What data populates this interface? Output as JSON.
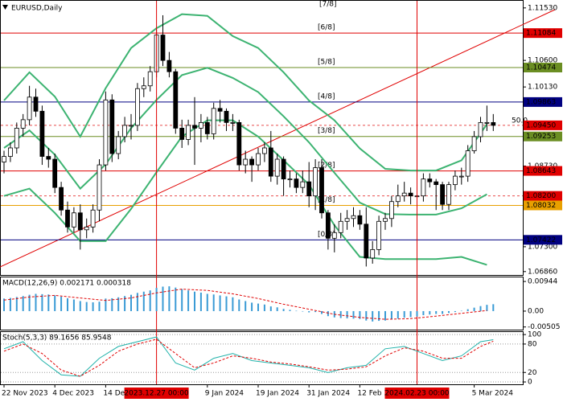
{
  "chart_data": [
    {
      "type": "candlestick",
      "title": "EURUSD,Daily",
      "categories": [
        "22 Nov 2023",
        null,
        null,
        null,
        null,
        null,
        null,
        null,
        "4 Dec 2023",
        null,
        null,
        null,
        null,
        null,
        null,
        null,
        "14 Dec 2023",
        null,
        null,
        null,
        null,
        null,
        null,
        null,
        "2023.12.27 00:00",
        null,
        null,
        null,
        null,
        null,
        null,
        null,
        "9 Jan 2024",
        null,
        null,
        null,
        null,
        null,
        null,
        null,
        "19 Jan 2024",
        null,
        null,
        null,
        null,
        null,
        null,
        null,
        "31 Jan 2024",
        null,
        null,
        null,
        null,
        null,
        null,
        null,
        "12 Feb 2024",
        null,
        null,
        null,
        null,
        null,
        null,
        null,
        null,
        "2024.02.23 00:00",
        null,
        null,
        null,
        null,
        null,
        null,
        null,
        null,
        "5 Mar 2024",
        null,
        null,
        null
      ],
      "highlight": [
        24,
        65
      ],
      "highlight_color": "#e00000",
      "xlim": [
        -0.633,
        81.646
      ],
      "candles": [
        [
          1.088,
          1.09,
          1.086,
          1.089
        ],
        [
          1.089,
          1.0915,
          1.088,
          1.0905
        ],
        [
          1.0905,
          1.095,
          1.0895,
          1.094
        ],
        [
          1.094,
          1.0965,
          1.0925,
          1.0955
        ],
        [
          1.0955,
          1.1015,
          1.0945,
          1.0995
        ],
        [
          1.0995,
          1.101,
          1.096,
          1.097
        ],
        [
          1.097,
          1.098,
          1.0875,
          1.089
        ],
        [
          1.089,
          1.0905,
          1.087,
          1.0885
        ],
        [
          1.0885,
          1.0895,
          1.0825,
          1.0835
        ],
        [
          1.0835,
          1.0845,
          1.0785,
          1.0795
        ],
        [
          1.0795,
          1.081,
          1.0755,
          1.0765
        ],
        [
          1.0765,
          1.08,
          1.0755,
          1.079
        ],
        [
          1.079,
          1.0805,
          1.0725,
          1.076
        ],
        [
          1.076,
          1.078,
          1.0745,
          1.0765
        ],
        [
          1.0765,
          1.0805,
          1.0755,
          1.0795
        ],
        [
          1.0795,
          1.0885,
          1.0775,
          1.0875
        ],
        [
          1.0875,
          1.1005,
          1.0865,
          1.099
        ],
        [
          1.099,
          1.1,
          1.088,
          1.0895
        ],
        [
          1.0895,
          1.0935,
          1.0885,
          1.0925
        ],
        [
          1.0925,
          1.096,
          1.0915,
          1.0945
        ],
        [
          1.0945,
          1.0965,
          1.092,
          1.0945
        ],
        [
          1.0945,
          1.102,
          1.0935,
          1.101
        ],
        [
          1.101,
          1.103,
          1.0995,
          1.1015
        ],
        [
          1.1015,
          1.105,
          1.1005,
          1.104
        ],
        [
          1.104,
          1.1115,
          1.103,
          1.1105
        ],
        [
          1.1105,
          1.114,
          1.105,
          1.106
        ],
        [
          1.106,
          1.1075,
          1.103,
          1.104
        ],
        [
          1.104,
          1.1045,
          1.093,
          1.094
        ],
        [
          1.094,
          1.0955,
          1.0905,
          1.092
        ],
        [
          1.092,
          1.0955,
          1.091,
          1.0945
        ],
        [
          1.0945,
          1.0995,
          1.0875,
          1.094
        ],
        [
          1.094,
          1.0965,
          1.0915,
          1.095
        ],
        [
          1.095,
          1.096,
          1.092,
          1.093
        ],
        [
          1.093,
          1.0985,
          1.092,
          1.0975
        ],
        [
          1.0975,
          1.099,
          1.095,
          1.097
        ],
        [
          1.097,
          1.0975,
          1.0935,
          1.095
        ],
        [
          1.095,
          1.0965,
          1.0935,
          1.095
        ],
        [
          1.095,
          1.0955,
          1.0865,
          1.0875
        ],
        [
          1.0875,
          1.09,
          1.086,
          1.0885
        ],
        [
          1.0885,
          1.089,
          1.0845,
          1.0875
        ],
        [
          1.0875,
          1.0905,
          1.0865,
          1.0895
        ],
        [
          1.0895,
          1.0915,
          1.088,
          1.0905
        ],
        [
          1.0905,
          1.0935,
          1.0845,
          1.0855
        ],
        [
          1.0855,
          1.0895,
          1.084,
          1.0885
        ],
        [
          1.0885,
          1.089,
          1.082,
          1.085
        ],
        [
          1.085,
          1.0865,
          1.0835,
          1.085
        ],
        [
          1.085,
          1.086,
          1.0825,
          1.0835
        ],
        [
          1.0835,
          1.0865,
          1.0825,
          1.0845
        ],
        [
          1.0845,
          1.088,
          1.08,
          1.082
        ],
        [
          1.082,
          1.0885,
          1.0795,
          1.087
        ],
        [
          1.087,
          1.0885,
          1.078,
          1.079
        ],
        [
          1.079,
          1.0795,
          1.0725,
          1.0745
        ],
        [
          1.0745,
          1.077,
          1.072,
          1.0755
        ],
        [
          1.0755,
          1.079,
          1.0745,
          1.0775
        ],
        [
          1.0775,
          1.0795,
          1.076,
          1.078
        ],
        [
          1.078,
          1.08,
          1.0765,
          1.0785
        ],
        [
          1.0785,
          1.0795,
          1.076,
          1.077
        ],
        [
          1.077,
          1.08,
          1.0695,
          1.071
        ],
        [
          1.071,
          1.074,
          1.07,
          1.0725
        ],
        [
          1.0725,
          1.0785,
          1.0715,
          1.0775
        ],
        [
          1.0775,
          1.079,
          1.076,
          1.078
        ],
        [
          1.078,
          1.082,
          1.0765,
          1.081
        ],
        [
          1.081,
          1.084,
          1.08,
          1.082
        ],
        [
          1.082,
          1.0845,
          1.081,
          1.0825
        ],
        [
          1.0825,
          1.0835,
          1.0805,
          1.082
        ],
        [
          1.082,
          1.0835,
          1.08,
          1.082
        ],
        [
          1.082,
          1.086,
          1.081,
          1.085
        ],
        [
          1.085,
          1.086,
          1.0835,
          1.0845
        ],
        [
          1.0845,
          1.085,
          1.0795,
          1.084
        ],
        [
          1.084,
          1.0845,
          1.0795,
          1.0805
        ],
        [
          1.0805,
          1.0845,
          1.0795,
          1.084
        ],
        [
          1.084,
          1.0865,
          1.083,
          1.0855
        ],
        [
          1.0855,
          1.087,
          1.084,
          1.0855
        ],
        [
          1.0855,
          1.091,
          1.0845,
          1.09
        ],
        [
          1.09,
          1.0935,
          1.0895,
          1.0925
        ],
        [
          1.0925,
          1.096,
          1.0915,
          1.095
        ],
        [
          1.095,
          1.098,
          1.0935,
          1.095
        ],
        [
          1.095,
          1.0965,
          1.0935,
          1.0945
        ]
      ],
      "up_color": "#ffffff",
      "down_color": "#000000",
      "overlays": [
        {
          "color": "#3cb371",
          "x": [
            0,
            4,
            8,
            12,
            16,
            20,
            24,
            28,
            32,
            36,
            40,
            44,
            48,
            52,
            56,
            60,
            64,
            68,
            72,
            76
          ],
          "values": [
            1.0989,
            1.1039,
            1.0996,
            1.0925,
            1.1011,
            1.1082,
            1.1117,
            1.1142,
            1.1139,
            1.1103,
            1.1082,
            1.1039,
            1.0989,
            1.0954,
            1.0904,
            1.0868,
            1.0865,
            1.0865,
            1.0883,
            1.0947
          ]
        },
        {
          "color": "#3cb371",
          "x": [
            0,
            4,
            8,
            12,
            16,
            20,
            24,
            28,
            32,
            36,
            40,
            44,
            48,
            52,
            56,
            60,
            64,
            68,
            72,
            76
          ],
          "values": [
            1.0905,
            1.0936,
            1.0893,
            1.0833,
            1.0876,
            1.094,
            1.099,
            1.1034,
            1.1047,
            1.1029,
            1.1004,
            1.0961,
            1.0915,
            1.0861,
            1.0808,
            1.0788,
            1.0787,
            1.0787,
            1.0798,
            1.0823
          ]
        },
        {
          "color": "#3cb371",
          "x": [
            0,
            4,
            8,
            12,
            16,
            20,
            24,
            28,
            32,
            36,
            40,
            44,
            48,
            52,
            56,
            60,
            64,
            68,
            72,
            76
          ],
          "values": [
            1.082,
            1.0833,
            1.079,
            1.074,
            1.074,
            1.0797,
            1.0862,
            1.0925,
            1.0954,
            1.0954,
            1.0925,
            1.0883,
            1.084,
            1.0768,
            1.0712,
            1.0708,
            1.0708,
            1.0708,
            1.0712,
            1.0698
          ]
        }
      ],
      "levels": [
        {
          "value": 1.11084,
          "color": "#e00000",
          "murrey": "[6/8]"
        },
        {
          "value": 1.10474,
          "color": "#6b8e23",
          "murrey": "[5/8]"
        },
        {
          "value": 1.09863,
          "color": "#000080",
          "murrey": "[4/8]"
        },
        {
          "value": 1.0945,
          "label": "1.09450",
          "color": "#e00000",
          "dash": true
        },
        {
          "value": 1.09253,
          "color": "#6b8e23",
          "murrey": "[3/8]"
        },
        {
          "value": 1.08643,
          "color": "#e00000",
          "murrey": "[2/8]"
        },
        {
          "value": 1.082,
          "label": "1.08200",
          "color": "#e00000",
          "dash": true
        },
        {
          "value": 1.08032,
          "color": "#e8a000",
          "murrey": "[1/8]"
        },
        {
          "value": 1.07422,
          "color": "#000080",
          "murrey": "[0/8]"
        }
      ],
      "top_murrey": "[7/8]",
      "fib_label": "50.0",
      "ylim": [
        1.068,
        1.1167
      ],
      "yticks": [
        {
          "value": 1.1153,
          "label": "1.11530"
        },
        {
          "value": 1.106,
          "label": "1.10600"
        },
        {
          "value": 1.1013,
          "label": "1.10130"
        },
        {
          "value": 1.0873,
          "label": "1.08730"
        },
        {
          "value": 1.073,
          "label": "1.07300"
        },
        {
          "value": 1.0686,
          "label": "1.06860"
        }
      ]
    },
    {
      "type": "macd",
      "title": "MACD(12,26,9) 0.002171 0.000318",
      "series": [
        {
          "type": "bar",
          "color": "#3a9bd5",
          "values": [
            0.004,
            0.0042,
            0.0045,
            0.0048,
            0.0052,
            0.0055,
            0.0054,
            0.0053,
            0.005,
            0.0046,
            0.0041,
            0.0037,
            0.0032,
            0.0029,
            0.0028,
            0.003,
            0.004,
            0.0041,
            0.0044,
            0.0048,
            0.0052,
            0.0058,
            0.0062,
            0.0066,
            0.0074,
            0.0078,
            0.0079,
            0.0075,
            0.007,
            0.0066,
            0.0062,
            0.0059,
            0.0055,
            0.0053,
            0.005,
            0.0047,
            0.0044,
            0.0037,
            0.0032,
            0.0027,
            0.0024,
            0.0021,
            0.0015,
            0.0012,
            0.0007,
            0.0004,
            0.0001,
            -0.0001,
            -0.0004,
            -0.0003,
            -0.0009,
            -0.0016,
            -0.002,
            -0.0022,
            -0.0023,
            -0.0024,
            -0.0025,
            -0.003,
            -0.0033,
            -0.0031,
            -0.003,
            -0.0027,
            -0.0024,
            -0.0021,
            -0.0019,
            -0.0017,
            -0.0013,
            -0.0011,
            -0.0009,
            -0.0009,
            -0.0006,
            -0.0003,
            0.0001,
            0.0006,
            0.0011,
            0.0016,
            0.002,
            0.0022
          ]
        },
        {
          "type": "line",
          "color": "#e00000",
          "dash": true,
          "x": [
            0,
            4,
            8,
            12,
            16,
            20,
            24,
            28,
            32,
            36,
            40,
            44,
            48,
            52,
            56,
            60,
            64,
            68,
            72,
            76
          ],
          "values": [
            0.0035,
            0.0045,
            0.005,
            0.0042,
            0.0034,
            0.0042,
            0.0058,
            0.007,
            0.0066,
            0.0055,
            0.004,
            0.0022,
            0.0006,
            -0.001,
            -0.002,
            -0.0026,
            -0.0024,
            -0.0016,
            -0.0007,
            0.0002
          ]
        }
      ],
      "ylim": [
        -0.0059,
        0.011
      ],
      "yticks": [
        0.00944,
        {
          "value": 0,
          "label": "0.00"
        },
        -0.00505
      ]
    },
    {
      "type": "stochastic",
      "title": "Stoch(5,3,3) 89.1656 85.9548",
      "series": [
        {
          "color": "#20b2aa",
          "x": [
            0,
            3,
            6,
            9,
            12,
            15,
            18,
            21,
            24,
            27,
            30,
            33,
            36,
            39,
            42,
            45,
            48,
            51,
            54,
            57,
            60,
            63,
            66,
            69,
            72,
            75,
            77
          ],
          "values": [
            70,
            85,
            45,
            15,
            12,
            50,
            75,
            85,
            95,
            40,
            25,
            50,
            60,
            45,
            40,
            35,
            30,
            20,
            30,
            35,
            70,
            75,
            60,
            45,
            55,
            85,
            89.1656
          ]
        },
        {
          "color": "#e00000",
          "dash": true,
          "x": [
            0,
            3,
            6,
            9,
            12,
            15,
            18,
            21,
            24,
            27,
            30,
            33,
            36,
            39,
            42,
            45,
            48,
            51,
            54,
            57,
            60,
            63,
            66,
            69,
            72,
            75,
            77
          ],
          "values": [
            65,
            80,
            60,
            25,
            12,
            35,
            65,
            80,
            90,
            60,
            30,
            40,
            55,
            50,
            42,
            38,
            32,
            25,
            27,
            32,
            55,
            72,
            65,
            50,
            50,
            75,
            85.9548
          ]
        }
      ],
      "grid": "dotted",
      "ylim": [
        -5,
        107
      ],
      "yticks": [
        100,
        80,
        20,
        0
      ]
    }
  ]
}
